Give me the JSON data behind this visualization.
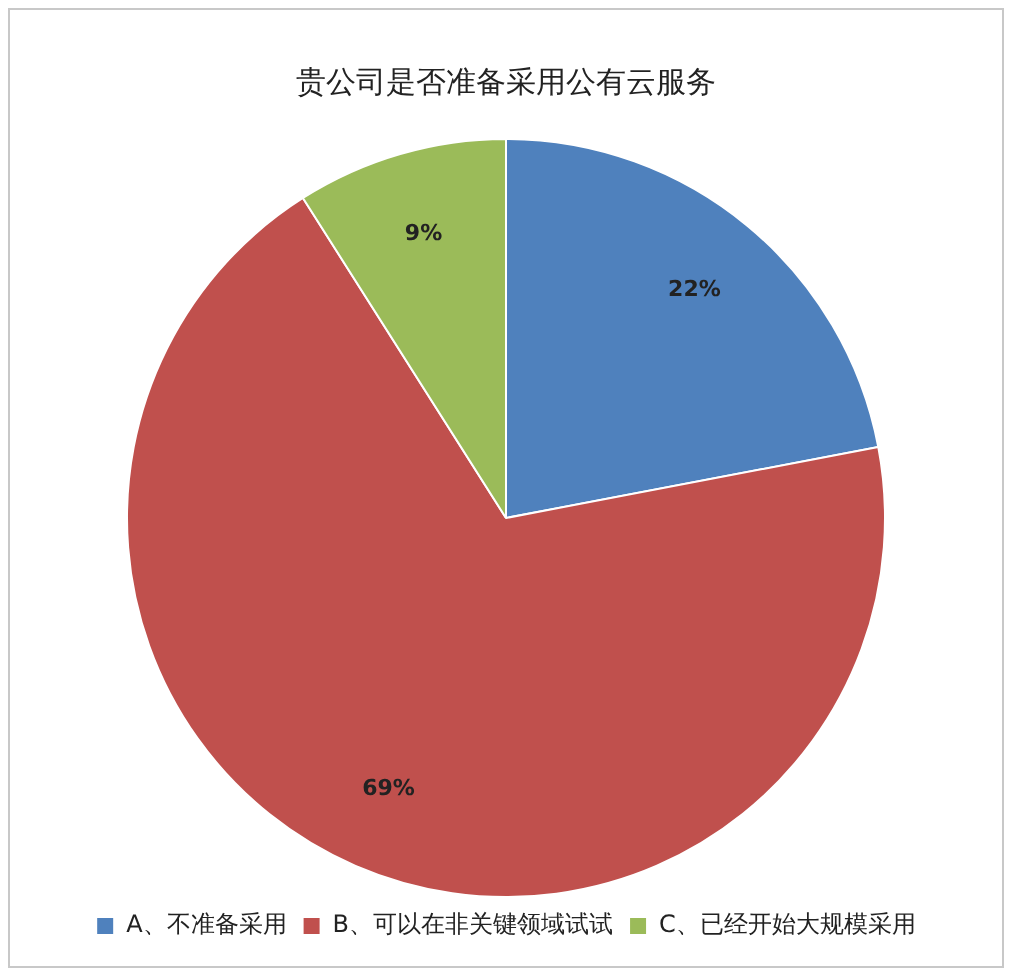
{
  "chart_data": {
    "type": "pie",
    "title": "贵公司是否准备采用公有云服务",
    "categories": [
      "A、不准备采用",
      "B、可以在非关键领域试试",
      "C、已经开始大规模采用"
    ],
    "values": [
      22,
      69,
      9
    ],
    "colors": [
      "#4f81bd",
      "#c0504d",
      "#9bbb59"
    ],
    "value_labels": [
      "22%",
      "69%",
      "9%"
    ],
    "legend": "bottom"
  }
}
